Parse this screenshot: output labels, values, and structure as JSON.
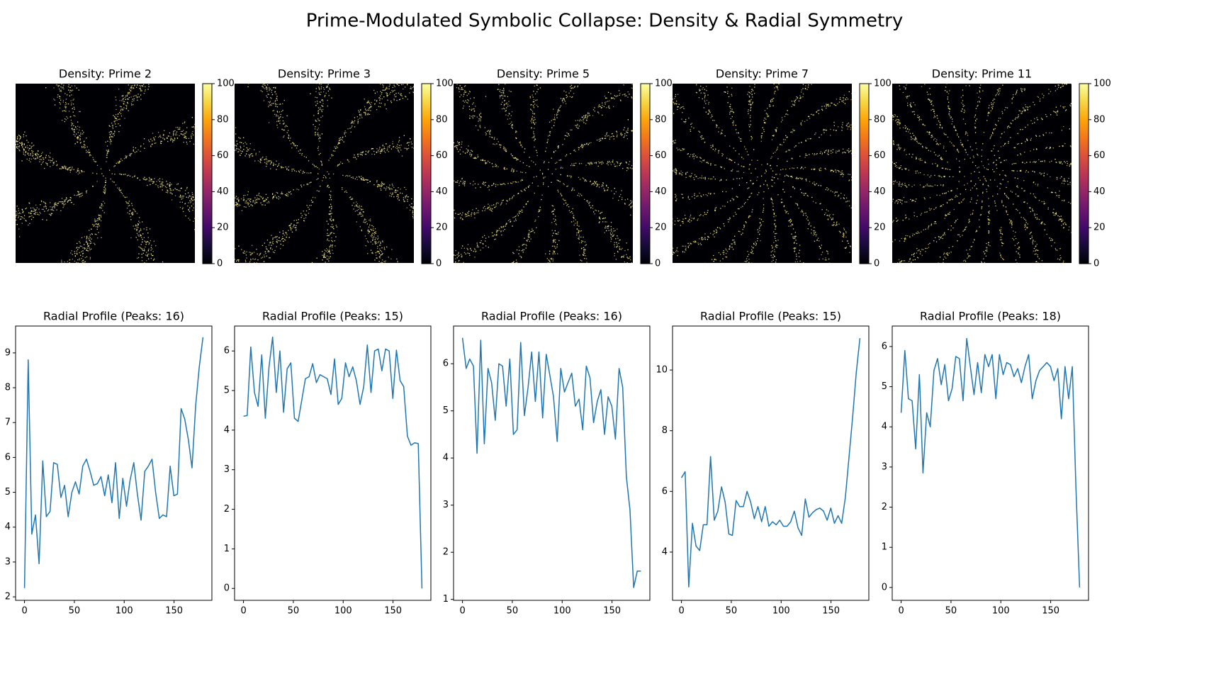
{
  "title": "Prime-Modulated Symbolic Collapse: Density & Radial Symmetry",
  "chart_data": [
    {
      "type": "image",
      "title": "Density: Prime 2",
      "colormap": "inferno",
      "clim": [
        0,
        100
      ],
      "cbar_ticks": [
        0,
        20,
        40,
        60,
        80,
        100
      ]
    },
    {
      "type": "image",
      "title": "Density: Prime 3",
      "colormap": "inferno",
      "clim": [
        0,
        100
      ],
      "cbar_ticks": [
        0,
        20,
        40,
        60,
        80,
        100
      ]
    },
    {
      "type": "image",
      "title": "Density: Prime 5",
      "colormap": "inferno",
      "clim": [
        0,
        100
      ],
      "cbar_ticks": [
        0,
        20,
        40,
        60,
        80,
        100
      ]
    },
    {
      "type": "image",
      "title": "Density: Prime 7",
      "colormap": "inferno",
      "clim": [
        0,
        100
      ],
      "cbar_ticks": [
        0,
        20,
        40,
        60,
        80,
        100
      ]
    },
    {
      "type": "image",
      "title": "Density: Prime 11",
      "colormap": "inferno",
      "clim": [
        0,
        100
      ],
      "cbar_ticks": [
        0,
        20,
        40,
        60,
        80,
        100
      ]
    },
    {
      "type": "line",
      "title": "Radial Profile (Peaks: 16)",
      "x": [
        0,
        3.7,
        7.3,
        11,
        14.6,
        18.3,
        21.9,
        25.6,
        29.2,
        32.9,
        36.5,
        40.2,
        43.8,
        47.5,
        51.1,
        54.8,
        58.4,
        62.1,
        65.8,
        69.4,
        73.1,
        76.7,
        80.4,
        84,
        87.7,
        91.3,
        95,
        98.6,
        102.3,
        105.9,
        109.6,
        113.2,
        116.9,
        120.6,
        124.2,
        127.9,
        131.5,
        135.2,
        138.8,
        142.5,
        146.1,
        149.8,
        153.4,
        157.1,
        160.7,
        164.4,
        168,
        171.7,
        175.3,
        179
      ],
      "series": [
        {
          "color": "#1f77b4",
          "values": [
            2.25,
            8.8,
            3.8,
            4.35,
            2.95,
            5.9,
            4.3,
            4.45,
            5.85,
            5.8,
            4.85,
            5.2,
            4.3,
            5.0,
            5.3,
            4.95,
            5.75,
            5.95,
            5.6,
            5.2,
            5.25,
            5.45,
            4.9,
            5.5,
            4.7,
            5.85,
            4.25,
            5.4,
            4.6,
            5.35,
            5.85,
            4.95,
            4.2,
            5.6,
            5.75,
            5.95,
            5.0,
            4.25,
            4.35,
            4.3,
            5.75,
            4.9,
            4.95,
            7.4,
            7.1,
            6.5,
            5.7,
            7.5,
            8.6,
            9.45
          ]
        }
      ],
      "xlim": [
        -8.95,
        187.95
      ],
      "xticks": [
        0,
        50,
        100,
        150
      ],
      "ylim": [
        1.9,
        9.77
      ],
      "yticks": [
        2,
        3,
        4,
        5,
        6,
        7,
        8,
        9
      ]
    },
    {
      "type": "line",
      "title": "Radial Profile (Peaks: 15)",
      "x": [
        0,
        3.7,
        7.3,
        11,
        14.6,
        18.3,
        21.9,
        25.6,
        29.2,
        32.9,
        36.5,
        40.2,
        43.8,
        47.5,
        51.1,
        54.8,
        58.4,
        62.1,
        65.8,
        69.4,
        73.1,
        76.7,
        80.4,
        84,
        87.7,
        91.3,
        95,
        98.6,
        102.3,
        105.9,
        109.6,
        113.2,
        116.9,
        120.6,
        124.2,
        127.9,
        131.5,
        135.2,
        138.8,
        142.5,
        146.1,
        149.8,
        153.4,
        157.1,
        160.7,
        164.4,
        168,
        171.7,
        175.3,
        179
      ],
      "series": [
        {
          "color": "#1f77b4",
          "values": [
            4.35,
            4.37,
            6.1,
            4.95,
            4.6,
            5.9,
            4.3,
            5.6,
            6.35,
            4.95,
            6.0,
            4.45,
            5.55,
            5.7,
            4.3,
            4.22,
            4.75,
            5.3,
            5.35,
            5.68,
            5.2,
            5.4,
            5.35,
            5.3,
            4.9,
            5.8,
            4.65,
            4.8,
            5.7,
            5.35,
            5.6,
            5.25,
            4.65,
            5.1,
            6.15,
            4.95,
            6.0,
            6.05,
            5.5,
            6.05,
            6.0,
            4.8,
            6.02,
            5.25,
            5.1,
            3.85,
            3.62,
            3.68,
            3.66,
            0.0
          ]
        }
      ],
      "xlim": [
        -8.95,
        187.95
      ],
      "xticks": [
        0,
        50,
        100,
        150
      ],
      "ylim": [
        -0.3,
        6.63
      ],
      "yticks": [
        0,
        1,
        2,
        3,
        4,
        5,
        6
      ]
    },
    {
      "type": "line",
      "title": "Radial Profile (Peaks: 16)",
      "x": [
        0,
        3.7,
        7.3,
        11,
        14.6,
        18.3,
        21.9,
        25.6,
        29.2,
        32.9,
        36.5,
        40.2,
        43.8,
        47.5,
        51.1,
        54.8,
        58.4,
        62.1,
        65.8,
        69.4,
        73.1,
        76.7,
        80.4,
        84,
        87.7,
        91.3,
        95,
        98.6,
        102.3,
        105.9,
        109.6,
        113.2,
        116.9,
        120.6,
        124.2,
        127.9,
        131.5,
        135.2,
        138.8,
        142.5,
        146.1,
        149.8,
        153.4,
        157.1,
        160.7,
        164.4,
        168,
        171.7,
        175.3,
        179
      ],
      "series": [
        {
          "color": "#1f77b4",
          "values": [
            6.55,
            5.9,
            6.1,
            5.95,
            4.1,
            6.5,
            4.3,
            5.9,
            5.6,
            4.8,
            6.0,
            5.95,
            5.1,
            6.1,
            4.5,
            4.6,
            6.45,
            4.9,
            5.5,
            6.25,
            5.2,
            6.25,
            4.85,
            6.2,
            5.75,
            5.3,
            4.35,
            5.9,
            5.4,
            5.6,
            5.8,
            5.1,
            5.25,
            4.6,
            5.95,
            5.7,
            4.75,
            5.2,
            5.45,
            4.5,
            5.3,
            5.1,
            4.4,
            5.9,
            5.5,
            3.6,
            2.9,
            1.25,
            1.6,
            1.6
          ]
        }
      ],
      "xlim": [
        -8.95,
        187.95
      ],
      "xticks": [
        0,
        50,
        100,
        150
      ],
      "ylim": [
        0.98,
        6.8
      ],
      "yticks": [
        1,
        2,
        3,
        4,
        5,
        6
      ]
    },
    {
      "type": "line",
      "title": "Radial Profile (Peaks: 15)",
      "x": [
        0,
        3.7,
        7.3,
        11,
        14.6,
        18.3,
        21.9,
        25.6,
        29.2,
        32.9,
        36.5,
        40.2,
        43.8,
        47.5,
        51.1,
        54.8,
        58.4,
        62.1,
        65.8,
        69.4,
        73.1,
        76.7,
        80.4,
        84,
        87.7,
        91.3,
        95,
        98.6,
        102.3,
        105.9,
        109.6,
        113.2,
        116.9,
        120.6,
        124.2,
        127.9,
        131.5,
        135.2,
        138.8,
        142.5,
        146.1,
        149.8,
        153.4,
        157.1,
        160.7,
        164.4,
        168,
        171.7,
        175.3,
        179
      ],
      "series": [
        {
          "color": "#1f77b4",
          "values": [
            6.45,
            6.65,
            2.85,
            4.95,
            4.2,
            4.05,
            4.9,
            4.9,
            7.15,
            5.05,
            5.35,
            6.15,
            5.65,
            4.6,
            4.55,
            5.7,
            5.5,
            5.5,
            6.0,
            5.65,
            5.1,
            5.5,
            5.0,
            5.5,
            4.85,
            5.0,
            4.9,
            5.05,
            4.85,
            4.85,
            5.0,
            5.35,
            4.8,
            4.55,
            5.75,
            5.15,
            5.3,
            5.4,
            5.45,
            5.35,
            5.05,
            5.45,
            4.95,
            5.2,
            4.95,
            5.8,
            7.1,
            8.45,
            9.9,
            11.05
          ]
        }
      ],
      "xlim": [
        -8.95,
        187.95
      ],
      "xticks": [
        0,
        50,
        100,
        150
      ],
      "ylim": [
        2.41,
        11.45
      ],
      "yticks": [
        4,
        6,
        8,
        10
      ]
    },
    {
      "type": "line",
      "title": "Radial Profile (Peaks: 18)",
      "x": [
        0,
        3.7,
        7.3,
        11,
        14.6,
        18.3,
        21.9,
        25.6,
        29.2,
        32.9,
        36.5,
        40.2,
        43.8,
        47.5,
        51.1,
        54.8,
        58.4,
        62.1,
        65.8,
        69.4,
        73.1,
        76.7,
        80.4,
        84,
        87.7,
        91.3,
        95,
        98.6,
        102.3,
        105.9,
        109.6,
        113.2,
        116.9,
        120.6,
        124.2,
        127.9,
        131.5,
        135.2,
        138.8,
        142.5,
        146.1,
        149.8,
        153.4,
        157.1,
        160.7,
        164.4,
        168,
        171.7,
        175.3,
        179
      ],
      "series": [
        {
          "color": "#1f77b4",
          "values": [
            4.35,
            5.9,
            4.7,
            4.65,
            3.45,
            5.3,
            2.85,
            4.35,
            4.0,
            5.4,
            5.7,
            5.05,
            5.55,
            4.65,
            4.95,
            5.75,
            5.7,
            4.65,
            6.2,
            5.5,
            4.8,
            5.6,
            4.85,
            5.8,
            5.5,
            5.8,
            4.7,
            5.8,
            5.3,
            5.6,
            5.55,
            5.25,
            5.45,
            5.1,
            5.5,
            5.8,
            4.7,
            5.15,
            5.4,
            5.5,
            5.6,
            5.5,
            5.15,
            5.45,
            4.2,
            5.5,
            4.7,
            5.5,
            2.5,
            0.0
          ]
        }
      ],
      "xlim": [
        -8.95,
        187.95
      ],
      "xticks": [
        0,
        50,
        100,
        150
      ],
      "ylim": [
        -0.32,
        6.51
      ],
      "yticks": [
        0,
        1,
        2,
        3,
        4,
        5,
        6
      ]
    }
  ]
}
